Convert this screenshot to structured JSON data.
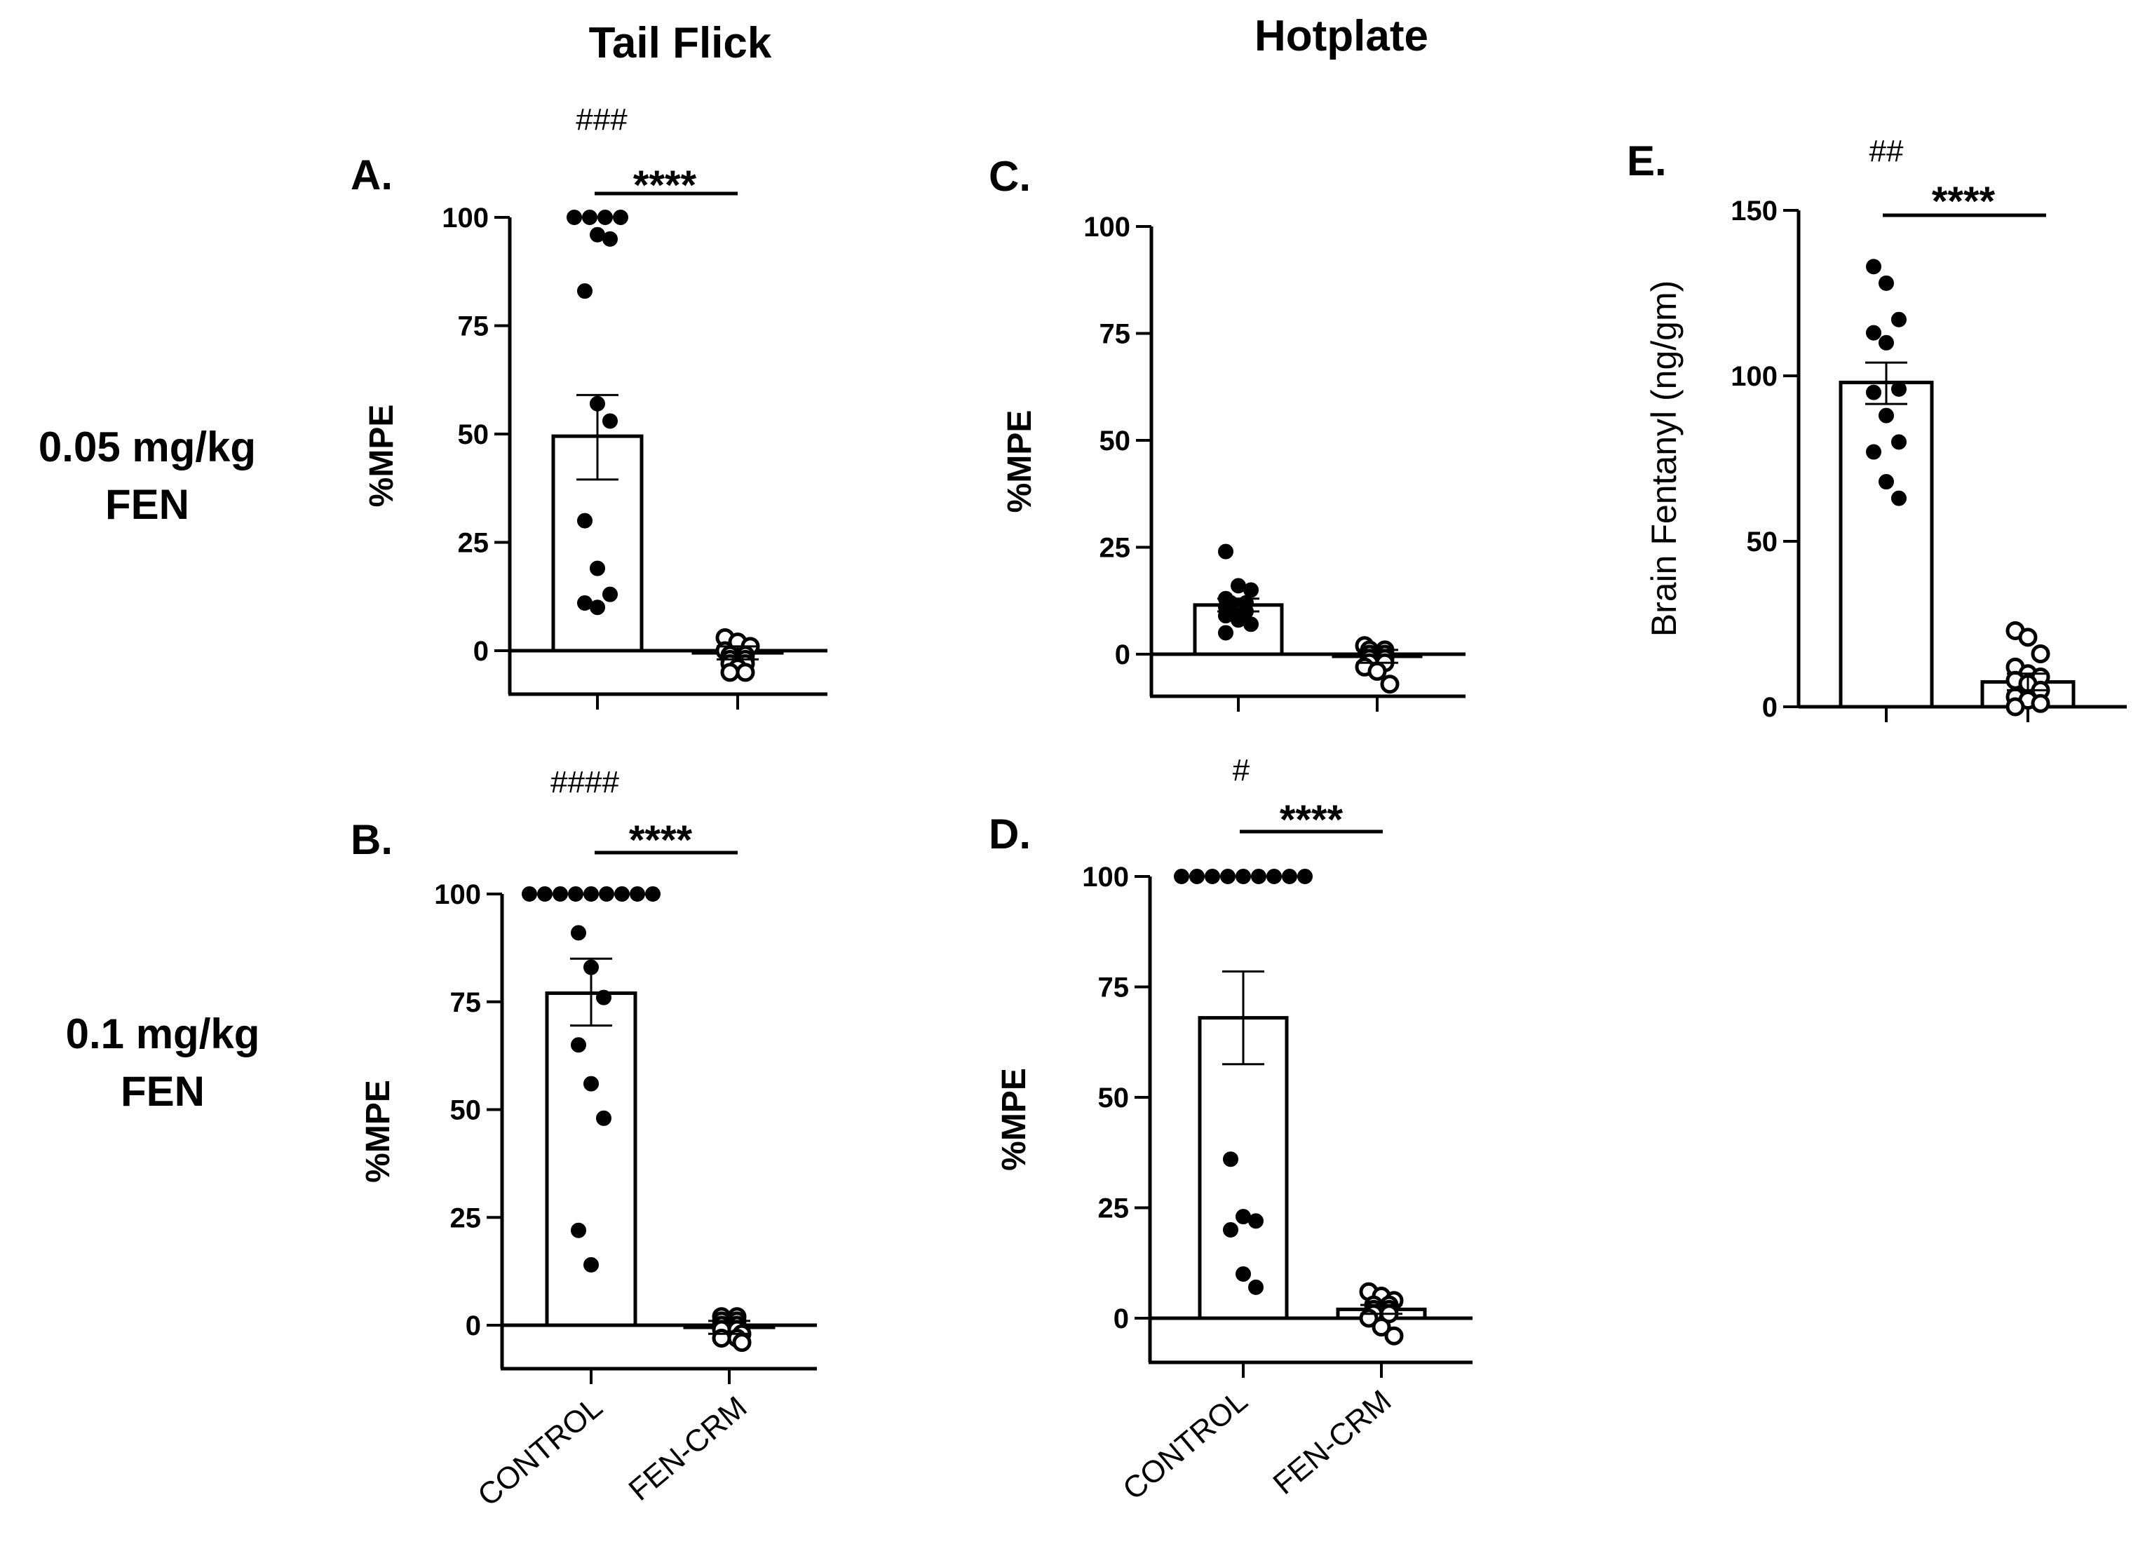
{
  "figure": {
    "column_headings": [
      "Tail Flick",
      "Hotplate"
    ],
    "row_labels": [
      {
        "line1": "0.05 mg/kg",
        "line2": "FEN"
      },
      {
        "line1": "0.1 mg/kg",
        "line2": "FEN"
      }
    ],
    "x_categories": [
      "CONTROL",
      "FEN-CRM"
    ]
  },
  "chart_data": [
    {
      "panel": "A.",
      "type": "bar",
      "ylabel": "%MPE",
      "ylim": [
        -10,
        100
      ],
      "yticks": [
        0,
        25,
        50,
        75,
        100
      ],
      "categories": [
        "CONTROL",
        "FEN-CRM"
      ],
      "bars": [
        49.5,
        -0.5
      ],
      "errors": [
        [
          39.5,
          59
        ],
        [
          -2,
          1
        ]
      ],
      "points": [
        [
          100,
          100,
          100,
          100,
          96,
          95,
          83,
          57,
          53,
          30,
          19,
          13,
          11,
          10
        ],
        [
          3,
          2,
          1,
          0,
          -1,
          -1,
          -2,
          -2,
          -3,
          -3,
          -4,
          -5,
          -5
        ]
      ],
      "sig_stars": "****",
      "sig_hash": "###"
    },
    {
      "panel": "B.",
      "type": "bar",
      "ylabel": "%MPE",
      "ylim": [
        -10,
        100
      ],
      "yticks": [
        0,
        25,
        50,
        75,
        100
      ],
      "categories": [
        "CONTROL",
        "FEN-CRM"
      ],
      "bars": [
        77,
        -0.5
      ],
      "errors": [
        [
          69.5,
          85
        ],
        [
          -2,
          1
        ]
      ],
      "points": [
        [
          100,
          100,
          100,
          100,
          100,
          100,
          100,
          100,
          100,
          91,
          83,
          76,
          65,
          56,
          48,
          22,
          14
        ],
        [
          2,
          2,
          1,
          1,
          0,
          0,
          -1,
          -1,
          -2,
          -3,
          -3,
          -4
        ]
      ],
      "sig_stars": "****",
      "sig_hash": "####"
    },
    {
      "panel": "C.",
      "type": "bar",
      "ylabel": "%MPE",
      "ylim": [
        -10,
        100
      ],
      "yticks": [
        0,
        25,
        50,
        75,
        100
      ],
      "categories": [
        "CONTROL",
        "FEN-CRM"
      ],
      "bars": [
        11.5,
        -0.5
      ],
      "errors": [
        [
          10,
          13
        ],
        [
          -2,
          1
        ]
      ],
      "points": [
        [
          24,
          16,
          15,
          13,
          12,
          12,
          11,
          10,
          10,
          9,
          8,
          7,
          5
        ],
        [
          2,
          1,
          1,
          0,
          0,
          -1,
          -1,
          -2,
          -2,
          -3,
          -4,
          -7
        ]
      ],
      "sig_stars": "",
      "sig_hash": ""
    },
    {
      "panel": "D.",
      "type": "bar",
      "ylabel": "%MPE",
      "ylim": [
        -10,
        100
      ],
      "yticks": [
        0,
        25,
        50,
        75,
        100
      ],
      "categories": [
        "CONTROL",
        "FEN-CRM"
      ],
      "bars": [
        68,
        2
      ],
      "errors": [
        [
          57.5,
          78.5
        ],
        [
          1,
          3
        ]
      ],
      "points": [
        [
          100,
          100,
          100,
          100,
          100,
          100,
          100,
          100,
          100,
          36,
          23,
          22,
          20,
          10,
          7
        ],
        [
          6,
          5,
          4,
          3,
          3,
          2,
          2,
          1,
          1,
          0,
          -2,
          -4
        ]
      ],
      "sig_stars": "****",
      "sig_hash": "#"
    },
    {
      "panel": "E.",
      "type": "bar",
      "ylabel": "Brain Fentanyl (ng/gm)",
      "ylim": [
        0,
        150
      ],
      "yticks": [
        0,
        50,
        100,
        150
      ],
      "categories": [
        "CONTROL",
        "FEN-CRM"
      ],
      "bars": [
        98,
        7.5
      ],
      "errors": [
        [
          91.5,
          104
        ],
        [
          5,
          10
        ]
      ],
      "points": [
        [
          133,
          128,
          117,
          113,
          110,
          96,
          95,
          88,
          80,
          77,
          68,
          63
        ],
        [
          23,
          21,
          16,
          12,
          10,
          9,
          8,
          7,
          5,
          3,
          2,
          1,
          0
        ]
      ],
      "sig_stars": "****",
      "sig_hash": "##"
    }
  ]
}
